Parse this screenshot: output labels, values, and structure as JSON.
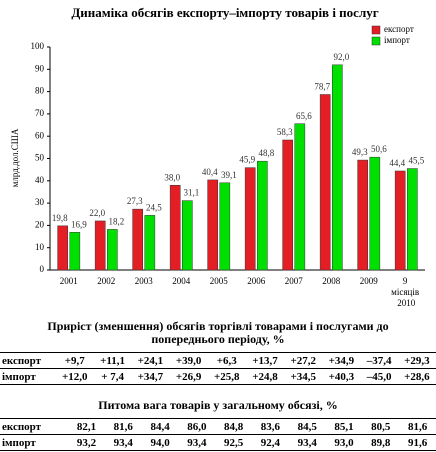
{
  "chart_data": {
    "type": "bar",
    "title": "Динаміка обсягів експорту–імпорту товарів і послуг",
    "y_label": "млрд.дол.США",
    "categories": [
      "2001",
      "2002",
      "2003",
      "2004",
      "2005",
      "2006",
      "2007",
      "2008",
      "2009",
      "9 місяців 2010"
    ],
    "series": [
      {
        "name": "експорт",
        "color": "#e31e24",
        "values": [
          19.8,
          22.0,
          27.3,
          38.0,
          40.4,
          45.9,
          58.3,
          78.7,
          49.3,
          44.4
        ],
        "value_labels": [
          "19,8",
          "22,0",
          "27,3",
          "38,0",
          "40,4",
          "45,9",
          "58,3",
          "78,7",
          "49,3",
          "44,4"
        ]
      },
      {
        "name": "імпорт",
        "color": "#00e000",
        "values": [
          16.9,
          18.2,
          24.5,
          31.1,
          39.1,
          48.8,
          65.6,
          92.0,
          50.6,
          45.5
        ],
        "value_labels": [
          "16,9",
          "18,2",
          "24,5",
          "31,1",
          "39,1",
          "48,8",
          "65,6",
          "92,0",
          "50,6",
          "45,5"
        ]
      }
    ],
    "ylim": [
      0,
      100
    ],
    "yticks": [
      0,
      10,
      20,
      30,
      40,
      50,
      60,
      70,
      80,
      90,
      100
    ],
    "grid": false,
    "legend": "top-right"
  },
  "tables": [
    {
      "title": "Приріст (зменшення) обсягів торгівлі товарами і послугами до попереднього періоду, %",
      "rows": [
        [
          "експорт",
          "+9,7",
          "+11,1",
          "+24,1",
          "+39,0",
          "+6,3",
          "+13,7",
          "+27,2",
          "+34,9",
          "–37,4",
          "+29,3"
        ],
        [
          "імпорт",
          "+12,0",
          "+ 7,4",
          "+34,7",
          "+26,9",
          "+25,8",
          "+24,8",
          "+34,5",
          "+40,3",
          "–45,0",
          "+28,6"
        ]
      ]
    },
    {
      "title": "Питома вага товарів у загальному обсязі, %",
      "rows": [
        [
          "експорт",
          "82,1",
          "81,6",
          "84,4",
          "86,0",
          "84,8",
          "83,6",
          "84,5",
          "85,1",
          "80,5",
          "81,6"
        ],
        [
          "імпорт",
          "93,2",
          "93,4",
          "94,0",
          "93,4",
          "92,5",
          "92,4",
          "93,4",
          "93,0",
          "89,8",
          "91,6"
        ]
      ]
    }
  ]
}
